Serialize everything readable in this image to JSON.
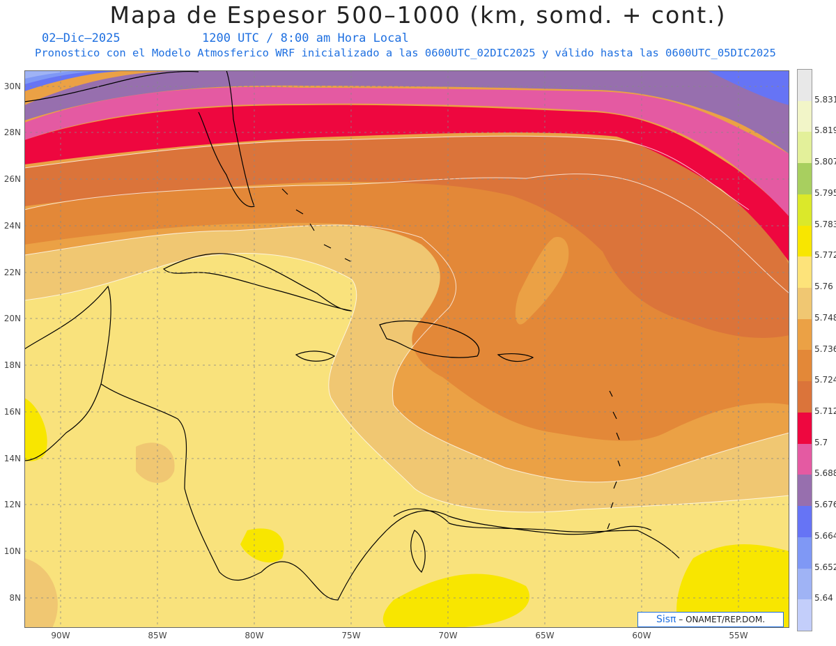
{
  "header": {
    "title": "Mapa de Espesor 500–1000 (km, somd. + cont.)",
    "date": "02–Dic–2025",
    "time": "1200 UTC / 8:00 am Hora Local",
    "model": "Pronostico con el Modelo Atmosferico WRF inicializado a las 0600UTC_02DIC2025 y válido hasta las  0600UTC_05DIC2025"
  },
  "axes": {
    "lat_labels": [
      "30N",
      "28N",
      "26N",
      "24N",
      "22N",
      "20N",
      "18N",
      "16N",
      "14N",
      "12N",
      "10N",
      "8N"
    ],
    "lon_labels": [
      "90W",
      "85W",
      "80W",
      "75W",
      "70W",
      "65W",
      "60W",
      "55W"
    ]
  },
  "legend": {
    "labels": [
      "5.831",
      "5.819",
      "5.807",
      "5.795",
      "5.783",
      "5.772",
      "5.76",
      "5.748",
      "5.736",
      "5.724",
      "5.712",
      "5.7",
      "5.688",
      "5.676",
      "5.664",
      "5.652",
      "5.64"
    ],
    "colors": [
      "#e8e8e8",
      "#f2f5c8",
      "#e3f09a",
      "#a8cf5f",
      "#dbe82a",
      "#f8e600",
      "#fde37a",
      "#f0c772",
      "#eba145",
      "#e38838",
      "#db743a",
      "#ee073f",
      "#e45aa2",
      "#976fae",
      "#6674f5",
      "#7f98f5",
      "#9fb3f5",
      "#c3cefa"
    ]
  },
  "credit": {
    "logo": "Sisπ",
    "text": "– ONAMET/REP.DOM."
  },
  "colors": {
    "ocean_base": "#f9e27c",
    "band_5748": "#f0c772",
    "band_5736": "#eba145",
    "band_5724": "#e38838",
    "band_5712": "#db743a",
    "band_5700": "#ee073f",
    "band_5688": "#e45aa2",
    "band_5676": "#976fae",
    "band_5664": "#6674f5",
    "band_5652": "#7f98f5",
    "band_5640": "#9fb3f5"
  }
}
